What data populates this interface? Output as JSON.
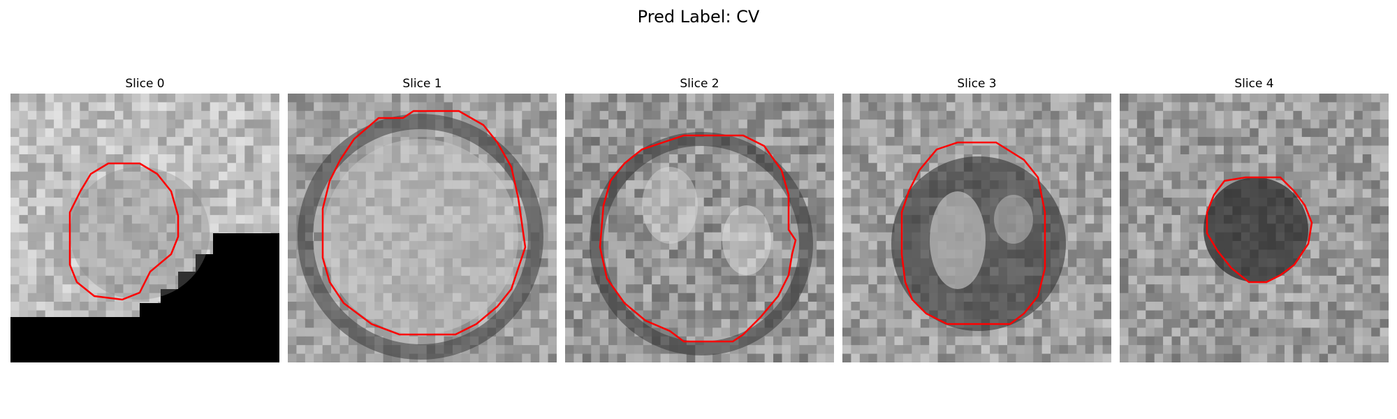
{
  "figure": {
    "title": "Pred Label: CV"
  },
  "panels": [
    {
      "title": "Slice 0"
    },
    {
      "title": "Slice 1"
    },
    {
      "title": "Slice 2"
    },
    {
      "title": "Slice 3"
    },
    {
      "title": "Slice 4"
    }
  ],
  "colors": {
    "contour": "#ff0000",
    "background": "#ffffff"
  }
}
